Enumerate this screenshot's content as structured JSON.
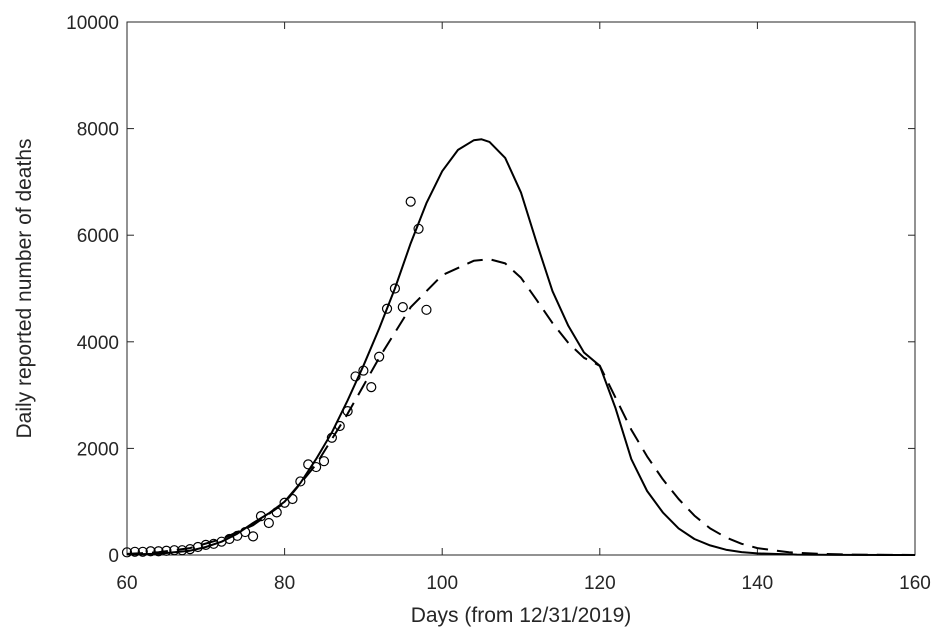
{
  "chart_data": {
    "type": "scatter",
    "title": "",
    "xlabel": "Days (from 12/31/2019)",
    "ylabel": "Daily reported number of deaths",
    "xlim": [
      60,
      160
    ],
    "ylim": [
      0,
      10000
    ],
    "xticks": [
      60,
      80,
      100,
      120,
      140,
      160
    ],
    "yticks": [
      0,
      2000,
      4000,
      6000,
      8000,
      10000
    ],
    "grid": false,
    "legend": null,
    "colors": {
      "ink": "#000000",
      "axis": "#262626",
      "background": "#ffffff"
    },
    "series": [
      {
        "style": "markers-circle",
        "points": [
          [
            60,
            50
          ],
          [
            61,
            60
          ],
          [
            62,
            60
          ],
          [
            63,
            70
          ],
          [
            64,
            70
          ],
          [
            65,
            80
          ],
          [
            66,
            90
          ],
          [
            67,
            90
          ],
          [
            68,
            110
          ],
          [
            69,
            150
          ],
          [
            70,
            190
          ],
          [
            71,
            210
          ],
          [
            72,
            250
          ],
          [
            73,
            300
          ],
          [
            74,
            360
          ],
          [
            75,
            430
          ],
          [
            76,
            350
          ],
          [
            77,
            730
          ],
          [
            78,
            600
          ],
          [
            79,
            800
          ],
          [
            80,
            980
          ],
          [
            81,
            1050
          ],
          [
            82,
            1380
          ],
          [
            83,
            1700
          ],
          [
            84,
            1650
          ],
          [
            85,
            1760
          ],
          [
            86,
            2200
          ],
          [
            87,
            2420
          ],
          [
            88,
            2700
          ],
          [
            89,
            3350
          ],
          [
            90,
            3460
          ],
          [
            91,
            3150
          ],
          [
            92,
            3720
          ],
          [
            93,
            4620
          ],
          [
            94,
            5000
          ],
          [
            95,
            4650
          ],
          [
            96,
            6630
          ],
          [
            97,
            6120
          ],
          [
            98,
            4600
          ]
        ]
      },
      {
        "style": "solid",
        "points": [
          [
            60,
            10
          ],
          [
            64,
            25
          ],
          [
            68,
            80
          ],
          [
            70,
            150
          ],
          [
            72,
            250
          ],
          [
            74,
            400
          ],
          [
            76,
            600
          ],
          [
            78,
            780
          ],
          [
            80,
            1000
          ],
          [
            82,
            1350
          ],
          [
            84,
            1800
          ],
          [
            86,
            2300
          ],
          [
            88,
            2900
          ],
          [
            90,
            3550
          ],
          [
            92,
            4250
          ],
          [
            94,
            5000
          ],
          [
            96,
            5850
          ],
          [
            98,
            6600
          ],
          [
            100,
            7200
          ],
          [
            102,
            7600
          ],
          [
            104,
            7780
          ],
          [
            105,
            7800
          ],
          [
            106,
            7750
          ],
          [
            108,
            7450
          ],
          [
            110,
            6800
          ],
          [
            112,
            5850
          ],
          [
            114,
            4950
          ],
          [
            116,
            4300
          ],
          [
            118,
            3800
          ],
          [
            120,
            3550
          ],
          [
            122,
            2750
          ],
          [
            124,
            1800
          ],
          [
            126,
            1200
          ],
          [
            128,
            800
          ],
          [
            130,
            500
          ],
          [
            132,
            300
          ],
          [
            134,
            180
          ],
          [
            136,
            100
          ],
          [
            138,
            55
          ],
          [
            140,
            30
          ],
          [
            145,
            8
          ],
          [
            150,
            2
          ],
          [
            160,
            0
          ]
        ]
      },
      {
        "style": "dashed",
        "points": [
          [
            60,
            20
          ],
          [
            64,
            50
          ],
          [
            68,
            130
          ],
          [
            72,
            300
          ],
          [
            76,
            560
          ],
          [
            80,
            980
          ],
          [
            84,
            1700
          ],
          [
            88,
            2650
          ],
          [
            92,
            3700
          ],
          [
            96,
            4650
          ],
          [
            100,
            5250
          ],
          [
            104,
            5520
          ],
          [
            106,
            5550
          ],
          [
            108,
            5470
          ],
          [
            110,
            5200
          ],
          [
            112,
            4780
          ],
          [
            114,
            4350
          ],
          [
            116,
            3980
          ],
          [
            118,
            3700
          ],
          [
            120,
            3550
          ],
          [
            122,
            2950
          ],
          [
            124,
            2350
          ],
          [
            126,
            1850
          ],
          [
            128,
            1420
          ],
          [
            130,
            1050
          ],
          [
            132,
            740
          ],
          [
            134,
            500
          ],
          [
            136,
            330
          ],
          [
            138,
            210
          ],
          [
            140,
            130
          ],
          [
            144,
            50
          ],
          [
            148,
            20
          ],
          [
            152,
            8
          ],
          [
            160,
            0
          ]
        ]
      }
    ]
  }
}
